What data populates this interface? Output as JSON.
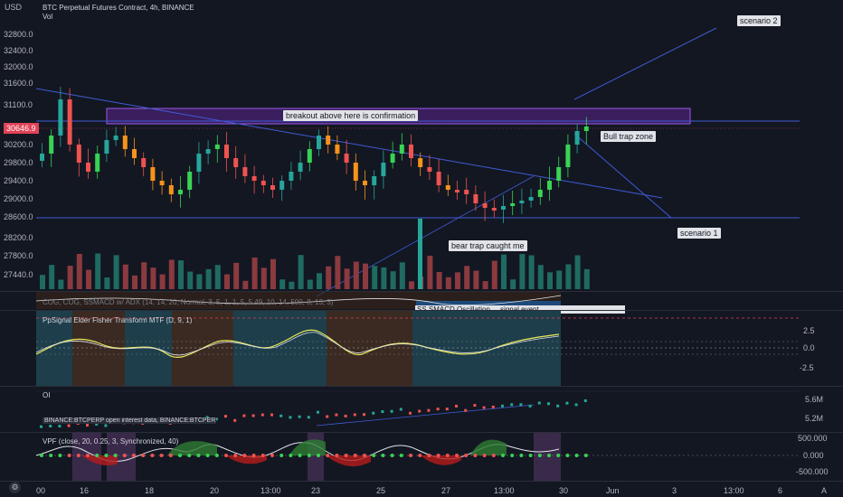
{
  "header": {
    "currency": "USD",
    "title": "BTC Perpetual Futures Contract, 4h, BINANCE",
    "vol": "Vol"
  },
  "price_axis": [
    "32800.0",
    "32400.0",
    "32000.0",
    "31600.0",
    "31100.0",
    "30646.9",
    "30200.0",
    "29800.0",
    "29400.0",
    "29000.0",
    "28600.0",
    "28200.0",
    "27800.0",
    "27440.0"
  ],
  "current_price": "30646.9",
  "annotations": {
    "breakout": "breakout above here is confirmation",
    "bull_trap": "Bull trap zone",
    "bear_trap": "bear trap caught me",
    "scenario1": "scenario 1",
    "scenario2": "scenario 2"
  },
  "indicators": {
    "cog": "COG, COG, SSMACD w/ ADX (14, 14, 20, Normal, 3, 5, 1, 1, 5, 5.49, 10, 14, 500, 8, 13, 3)",
    "cog_overlay": "SS SMACD Oscillation ... signal event",
    "fisher": "PpSignal Elder Fisher Transform MTF (D, 9, 1)",
    "fisher_axis": [
      "2.5",
      "0.0",
      "-2.5"
    ],
    "oi": "OI",
    "oi_label": "BINANCE:BTCPERP open interest data, BINANCE:BTCPERP, DI",
    "oi_axis": [
      "5.6M",
      "5.2M"
    ],
    "vpf": "VPF (close, 20, 0.25, 3, Synchronized, 40)",
    "vpf_axis": [
      "500.000",
      "0.000",
      "-500.000"
    ]
  },
  "time_axis": [
    "00",
    "16",
    "18",
    "20",
    "13:00",
    "23",
    "25",
    "27",
    "13:00",
    "30",
    "Jun",
    "3",
    "13:00",
    "6"
  ],
  "timezone_btn": "A",
  "colors": {
    "up": "#26a69a",
    "up_bright": "#39d353",
    "down": "#f7931a",
    "down_dark": "#ef5350",
    "trendline": "#3f5bd6",
    "zone": "#7b2fbf",
    "bg": "#131722"
  }
}
